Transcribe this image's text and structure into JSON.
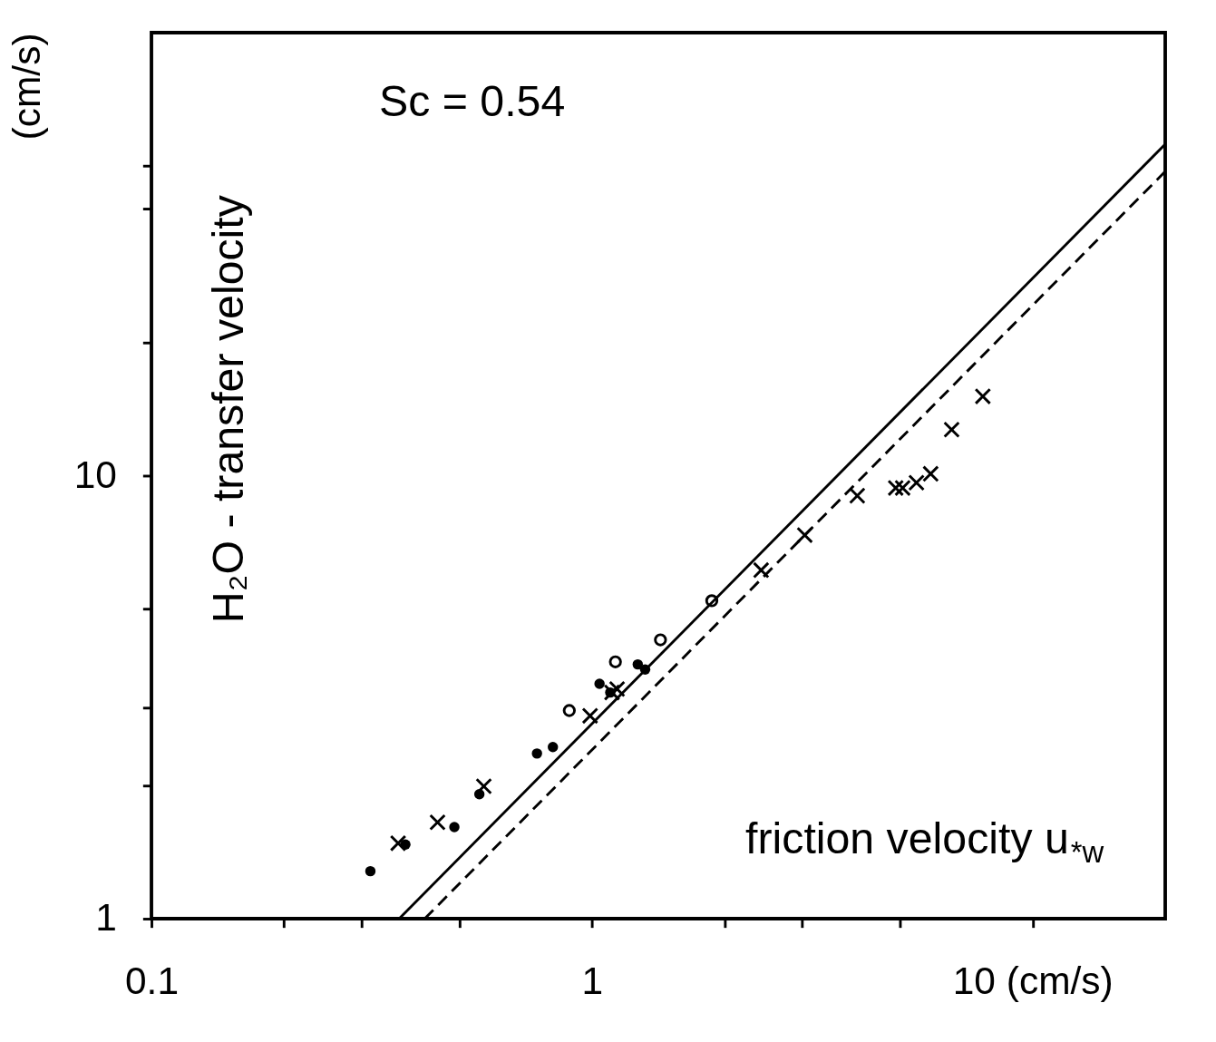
{
  "chart_data": {
    "type": "scatter",
    "xlabel": "friction velocity u$_{*w}$",
    "ylabel": "(cm/s)",
    "annotations": [
      "Sc = 0.54",
      "H₂O - transfer velocity"
    ],
    "log": "xy",
    "grid": false,
    "xlim": [
      0.1,
      20
    ],
    "ylim": [
      1,
      100
    ],
    "xticks": [
      0.1,
      {
        "value": 0.2,
        "label": null
      },
      {
        "value": 0.3,
        "label": null
      },
      {
        "value": 0.5,
        "label": null
      },
      1,
      {
        "value": 2,
        "label": null
      },
      {
        "value": 3,
        "label": null
      },
      {
        "value": 5,
        "label": null
      },
      {
        "value": 10,
        "label": "10 (cm/s)"
      }
    ],
    "yticks": [
      1,
      {
        "value": 2,
        "label": null
      },
      {
        "value": 3,
        "label": null
      },
      {
        "value": 5,
        "label": null
      },
      10,
      {
        "value": 20,
        "label": null
      },
      {
        "value": 40,
        "label": null
      },
      {
        "value": 50,
        "label": null
      }
    ],
    "series": [
      {
        "marker": "circle",
        "color": "#000000",
        "x": [
          0.314,
          0.377,
          0.487,
          0.555,
          0.75,
          0.815,
          1.04,
          1.1,
          1.27,
          1.32
        ],
        "values": [
          1.28,
          1.47,
          1.61,
          1.91,
          2.36,
          2.44,
          3.39,
          3.24,
          3.75,
          3.65
        ]
      },
      {
        "marker": "cross",
        "color": "#000000",
        "x": [
          0.363,
          0.446,
          0.568,
          0.99,
          1.11,
          1.14,
          2.42,
          3.04,
          4.0,
          4.89,
          5.07,
          5.45,
          5.87,
          6.55,
          7.71
        ],
        "values": [
          1.48,
          1.65,
          1.99,
          2.87,
          3.24,
          3.3,
          6.12,
          7.34,
          9.01,
          9.38,
          9.38,
          9.64,
          10.1,
          12.7,
          15.1
        ]
      },
      {
        "marker": "circle",
        "color": "#000000",
        "x": [
          0.888,
          1.13,
          1.43,
          1.87
        ],
        "values": [
          2.95,
          3.8,
          4.26,
          5.22
        ]
      },
      {
        "type": "line",
        "line_style": "solid",
        "color": "#000000",
        "x": [
          0.365,
          20
        ],
        "values": [
          1,
          56
        ]
      },
      {
        "type": "line",
        "line_style": "dashed",
        "color": "#000000",
        "x": [
          0.417,
          20
        ],
        "values": [
          1,
          48.6
        ]
      }
    ]
  }
}
